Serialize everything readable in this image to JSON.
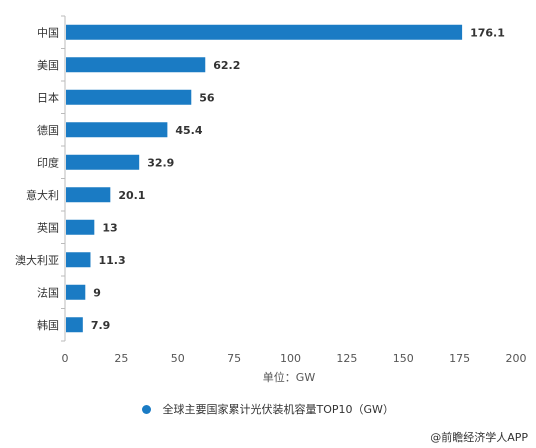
{
  "chart_data": {
    "type": "bar",
    "orientation": "horizontal",
    "categories": [
      "中国",
      "美国",
      "日本",
      "德国",
      "印度",
      "意大利",
      "英国",
      "澳大利亚",
      "法国",
      "韩国"
    ],
    "values": [
      176.1,
      62.2,
      56,
      45.4,
      32.9,
      20.1,
      13,
      11.3,
      9,
      7.9
    ],
    "data_labels": [
      "176.1",
      "62.2",
      "56",
      "45.4",
      "32.9",
      "20.1",
      "13",
      "11.3",
      "9",
      "7.9"
    ],
    "xlim": [
      0,
      200
    ],
    "xticks": [
      0,
      25,
      50,
      75,
      100,
      125,
      150,
      175,
      200
    ],
    "xtick_labels": [
      "0",
      "25",
      "50",
      "75",
      "100",
      "125",
      "150",
      "175",
      "200"
    ],
    "xlabel": "单位：GW",
    "grid": false,
    "legend_position": "bottom",
    "series": [
      {
        "name": "全球主要国家累计光伏装机容量TOP10（GW）",
        "color": "#1a7bc4"
      }
    ]
  },
  "source": "@前瞻经济学人APP"
}
